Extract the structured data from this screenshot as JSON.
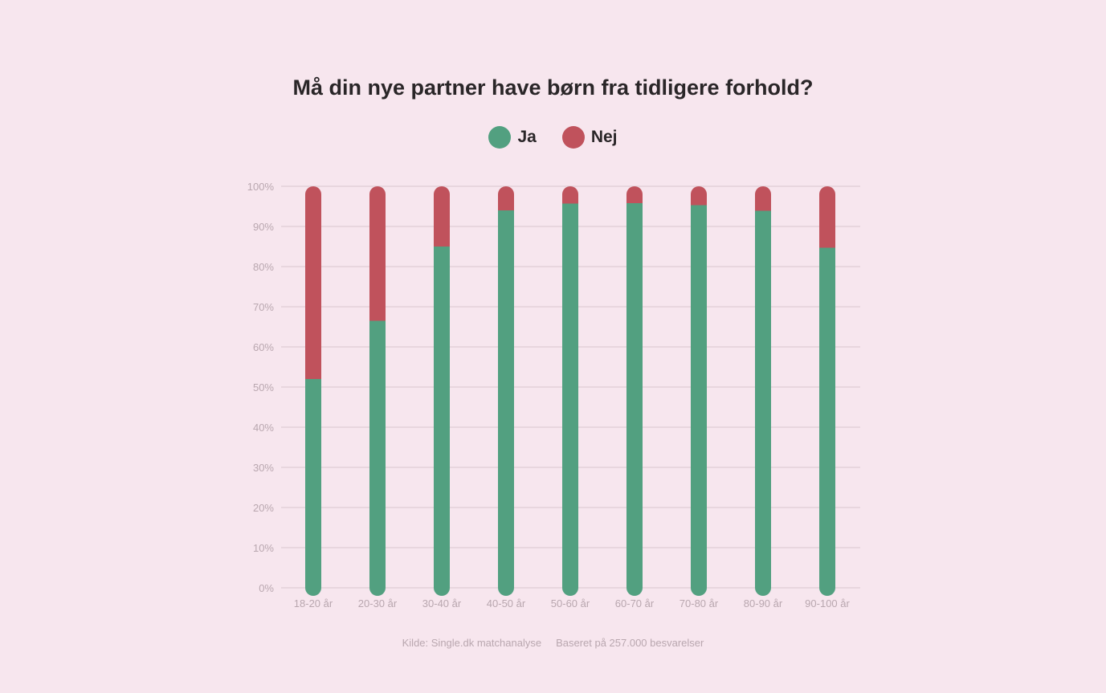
{
  "chart_data": {
    "type": "bar",
    "stacked": true,
    "title": "Må din nye partner have børn fra tidligere forhold?",
    "categories": [
      "18-20 år",
      "20-30 år",
      "30-40 år",
      "40-50 år",
      "50-60 år",
      "60-70 år",
      "70-80 år",
      "80-90 år",
      "90-100 år"
    ],
    "series": [
      {
        "name": "Ja",
        "color": "#52a080",
        "values": [
          52,
          66.5,
          85,
          94,
          95.7,
          95.8,
          95.3,
          93.9,
          84.7
        ]
      },
      {
        "name": "Nej",
        "color": "#c0525c",
        "values": [
          48,
          33.5,
          15,
          6,
          4.3,
          4.2,
          4.7,
          6.1,
          15.3
        ]
      }
    ],
    "y_ticks": [
      "0%",
      "10%",
      "20%",
      "30%",
      "40%",
      "50%",
      "60%",
      "70%",
      "80%",
      "90%",
      "100%"
    ],
    "ylim": [
      0,
      100
    ],
    "grid": true,
    "legend_position": "top-center"
  },
  "legend": {
    "ja_label": "Ja",
    "nej_label": "Nej"
  },
  "footer": {
    "source": "Kilde: Single.dk matchanalyse",
    "basis": "Baseret på 257.000 besvarelser"
  }
}
